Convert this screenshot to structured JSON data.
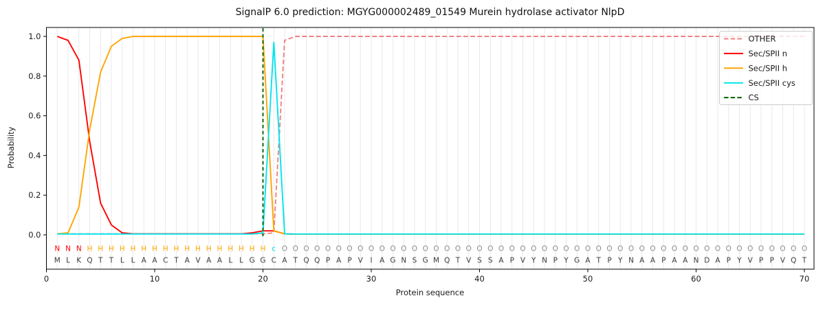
{
  "chart_data": {
    "type": "line",
    "title": "SignalP 6.0 prediction: MGYG000002489_01549 Murein hydrolase activator NlpD",
    "xlabel": "Protein sequence",
    "ylabel": "Probability",
    "xlim": [
      0,
      70.9
    ],
    "ylim": [
      -0.17,
      1.045
    ],
    "x_ticks": [
      0,
      10,
      20,
      30,
      40,
      50,
      60,
      70
    ],
    "y_ticks": [
      0.0,
      0.2,
      0.4,
      0.6,
      0.8,
      1.0
    ],
    "grid": "vertical line at every residue position",
    "legend_position": "upper right",
    "sequence": "MLKQTTLLAACTAVAALLGGCATQQPAPVIAGNSGMQTVSSAPVYNPYGATPYNAAPAANDAPYVPPVQT",
    "region_labels": "NNNHHHHHHHHHHHHHHHHHcOOOOOOOOOOOOOOOOOOOOOOOOOOOOOOOOOOOOOOOOOOOOOOOOO",
    "region_label_colors": {
      "N": "#ff0000",
      "H": "#ffa500",
      "c": "#00d8e8",
      "O": "#8c8c8c"
    },
    "sequence_color": "#3a3a3a",
    "colors": {
      "grid": "#e9e9e9",
      "axes": "#000000",
      "text": "#1a1a1a",
      "legend_border": "#cccccc"
    },
    "cleavage_site": {
      "label": "CS",
      "x": 20,
      "color": "#006400",
      "style": "dashed"
    },
    "series": [
      {
        "name": "OTHER",
        "color": "#f08080",
        "dash": true,
        "values": [
          0.005,
          0.005,
          0.005,
          0.005,
          0.005,
          0.005,
          0.005,
          0.005,
          0.005,
          0.005,
          0.005,
          0.005,
          0.005,
          0.005,
          0.005,
          0.005,
          0.005,
          0.005,
          0.005,
          0.005,
          0.01,
          0.98,
          1.0,
          1.0,
          1.0,
          1.0,
          1.0,
          1.0,
          1.0,
          1.0,
          1.0,
          1.0,
          1.0,
          1.0,
          1.0,
          1.0,
          1.0,
          1.0,
          1.0,
          1.0,
          1.0,
          1.0,
          1.0,
          1.0,
          1.0,
          1.0,
          1.0,
          1.0,
          1.0,
          1.0,
          1.0,
          1.0,
          1.0,
          1.0,
          1.0,
          1.0,
          1.0,
          1.0,
          1.0,
          1.0,
          1.0,
          1.0,
          1.0,
          1.0,
          1.0,
          1.0,
          1.0,
          1.0,
          1.0,
          1.0
        ]
      },
      {
        "name": "Sec/SPII n",
        "color": "#ff0000",
        "dash": false,
        "values": [
          1.0,
          0.98,
          0.88,
          0.47,
          0.16,
          0.05,
          0.01,
          0.005,
          0.005,
          0.005,
          0.005,
          0.005,
          0.005,
          0.005,
          0.005,
          0.005,
          0.005,
          0.005,
          0.01,
          0.02,
          0.02,
          0.005,
          0.003,
          0.003,
          0.003,
          0.003,
          0.003,
          0.003,
          0.003,
          0.003,
          0.003,
          0.003,
          0.003,
          0.003,
          0.003,
          0.003,
          0.003,
          0.003,
          0.003,
          0.003,
          0.003,
          0.003,
          0.003,
          0.003,
          0.003,
          0.003,
          0.003,
          0.003,
          0.003,
          0.003,
          0.003,
          0.003,
          0.003,
          0.003,
          0.003,
          0.003,
          0.003,
          0.003,
          0.003,
          0.003,
          0.003,
          0.003,
          0.003,
          0.003,
          0.003,
          0.003,
          0.003,
          0.003,
          0.003,
          0.003
        ]
      },
      {
        "name": "Sec/SPII h",
        "color": "#ffa500",
        "dash": false,
        "values": [
          0.005,
          0.01,
          0.14,
          0.53,
          0.82,
          0.95,
          0.99,
          1.0,
          1.0,
          1.0,
          1.0,
          1.0,
          1.0,
          1.0,
          1.0,
          1.0,
          1.0,
          1.0,
          1.0,
          1.0,
          0.02,
          0.005,
          0.003,
          0.003,
          0.003,
          0.003,
          0.003,
          0.003,
          0.003,
          0.003,
          0.003,
          0.003,
          0.003,
          0.003,
          0.003,
          0.003,
          0.003,
          0.003,
          0.003,
          0.003,
          0.003,
          0.003,
          0.003,
          0.003,
          0.003,
          0.003,
          0.003,
          0.003,
          0.003,
          0.003,
          0.003,
          0.003,
          0.003,
          0.003,
          0.003,
          0.003,
          0.003,
          0.003,
          0.003,
          0.003,
          0.003,
          0.003,
          0.003,
          0.003,
          0.003,
          0.003,
          0.003,
          0.003,
          0.003,
          0.003
        ]
      },
      {
        "name": "Sec/SPII cys",
        "color": "#00e5ee",
        "dash": false,
        "values": [
          0.004,
          0.004,
          0.004,
          0.004,
          0.004,
          0.004,
          0.004,
          0.004,
          0.004,
          0.004,
          0.004,
          0.004,
          0.004,
          0.004,
          0.004,
          0.004,
          0.004,
          0.004,
          0.004,
          0.01,
          0.97,
          0.005,
          0.004,
          0.004,
          0.004,
          0.004,
          0.004,
          0.004,
          0.004,
          0.004,
          0.004,
          0.004,
          0.004,
          0.004,
          0.004,
          0.004,
          0.004,
          0.004,
          0.004,
          0.004,
          0.004,
          0.004,
          0.004,
          0.004,
          0.004,
          0.004,
          0.004,
          0.004,
          0.004,
          0.004,
          0.004,
          0.004,
          0.004,
          0.004,
          0.004,
          0.004,
          0.004,
          0.004,
          0.004,
          0.004,
          0.004,
          0.004,
          0.004,
          0.004,
          0.004,
          0.004,
          0.004,
          0.004,
          0.004,
          0.004
        ]
      }
    ],
    "legend_entries": [
      "OTHER",
      "Sec/SPII n",
      "Sec/SPII h",
      "Sec/SPII cys",
      "CS"
    ]
  }
}
